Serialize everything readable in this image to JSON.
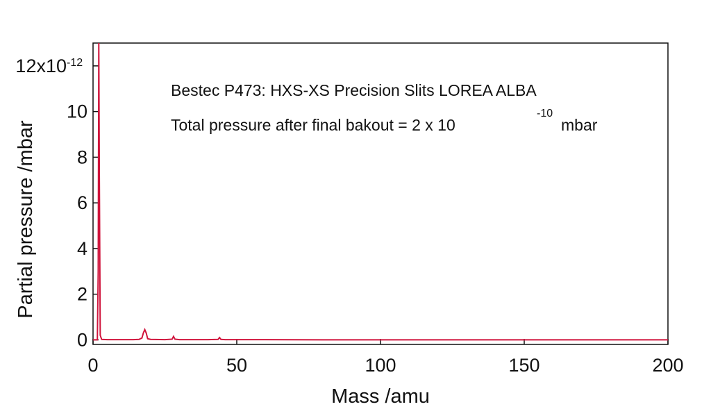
{
  "chart_data": {
    "type": "line",
    "xlabel": "Mass /amu",
    "ylabel": "Partial pressure /mbar",
    "xlim": [
      0,
      200
    ],
    "ylim": [
      -0.2,
      13
    ],
    "x_ticks": [
      0,
      50,
      100,
      150,
      200
    ],
    "x_tick_labels": [
      "0",
      "50",
      "100",
      "150",
      "200"
    ],
    "y_ticks": [
      0,
      2,
      4,
      6,
      8,
      10,
      12
    ],
    "y_tick_labels": [
      "0",
      "2",
      "4",
      "6",
      "8",
      "10",
      "12x10"
    ],
    "y_top_exponent": "-12",
    "grid": false,
    "line_color": "#d0143c",
    "annotations": [
      {
        "text": "Bestec P473: HXS-XS Precision Slits LOREA ALBA"
      },
      {
        "text": "Total pressure after final bakout =  2 x 10",
        "superscript": "-10",
        "suffix": "mbar"
      }
    ],
    "series": [
      {
        "values": [
          [
            0,
            0.0
          ],
          [
            1.5,
            0.0
          ],
          [
            1.8,
            3.0
          ],
          [
            2.0,
            13.0
          ],
          [
            2.2,
            7.0
          ],
          [
            2.5,
            0.2
          ],
          [
            3.0,
            0.02
          ],
          [
            5,
            0.01
          ],
          [
            10,
            0.01
          ],
          [
            14,
            0.01
          ],
          [
            16,
            0.02
          ],
          [
            17,
            0.08
          ],
          [
            17.5,
            0.3
          ],
          [
            18,
            0.45
          ],
          [
            18.5,
            0.3
          ],
          [
            19,
            0.05
          ],
          [
            20,
            0.02
          ],
          [
            25,
            0.01
          ],
          [
            27.5,
            0.03
          ],
          [
            28,
            0.15
          ],
          [
            28.5,
            0.03
          ],
          [
            30,
            0.01
          ],
          [
            40,
            0.01
          ],
          [
            43.5,
            0.02
          ],
          [
            44,
            0.1
          ],
          [
            44.5,
            0.02
          ],
          [
            46,
            0.01
          ],
          [
            60,
            0.01
          ],
          [
            80,
            0.0
          ],
          [
            100,
            0.0
          ],
          [
            120,
            0.0
          ],
          [
            150,
            0.0
          ],
          [
            180,
            0.0
          ],
          [
            200,
            0.0
          ]
        ]
      }
    ]
  }
}
